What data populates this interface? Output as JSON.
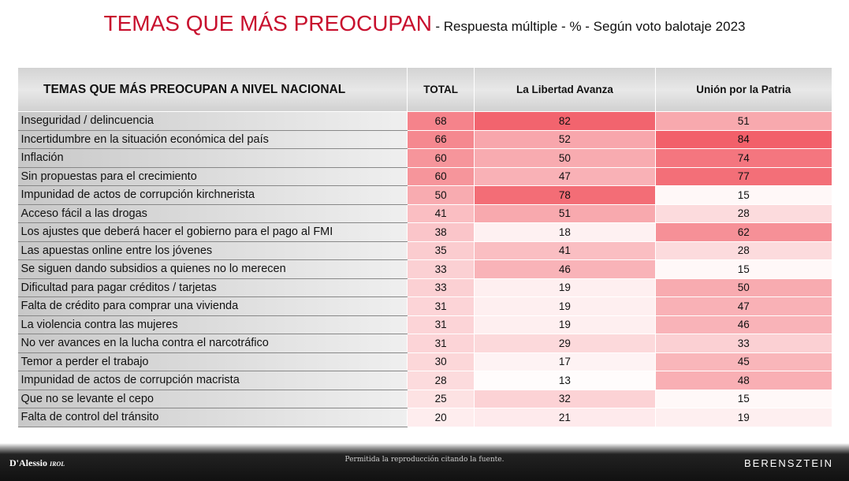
{
  "header": {
    "title": "TEMAS QUE MÁS PREOCUPAN",
    "subtitle": "- Respuesta múltiple - % - Según voto balotaje 2023"
  },
  "table": {
    "columns": [
      "TEMAS QUE MÁS PREOCUPAN A NIVEL NACIONAL",
      "TOTAL",
      "La Libertad Avanza",
      "Unión por la Patria"
    ],
    "rows": [
      [
        "Inseguridad / delincuencia",
        68,
        82,
        51
      ],
      [
        "Incertidumbre en la situación económica del país",
        66,
        52,
        84
      ],
      [
        "Inflación",
        60,
        50,
        74
      ],
      [
        "Sin propuestas para el crecimiento",
        60,
        47,
        77
      ],
      [
        "Impunidad de actos de corrupción kirchnerista",
        50,
        78,
        15
      ],
      [
        "Acceso fácil a las drogas",
        41,
        51,
        28
      ],
      [
        "Los ajustes que deberá hacer el gobierno para el pago al FMI",
        38,
        18,
        62
      ],
      [
        "Las apuestas online entre los jóvenes",
        35,
        41,
        28
      ],
      [
        "Se siguen dando subsidios a quienes no lo merecen",
        33,
        46,
        15
      ],
      [
        "Dificultad para pagar créditos / tarjetas",
        33,
        19,
        50
      ],
      [
        "Falta de crédito para comprar una vivienda",
        31,
        19,
        47
      ],
      [
        "La violencia contra las mujeres",
        31,
        19,
        46
      ],
      [
        "No ver avances en la lucha contra el narcotráfico",
        31,
        29,
        33
      ],
      [
        "Temor a perder el trabajo",
        30,
        17,
        45
      ],
      [
        "Impunidad de actos de corrupción macrista",
        28,
        13,
        48
      ],
      [
        "Que no se levante el cepo",
        25,
        32,
        15
      ],
      [
        "Falta de control del tránsito",
        20,
        21,
        19
      ]
    ]
  },
  "footer": {
    "left_logo": "D'Alessio",
    "left_logo_suffix": "IROL",
    "note": "Permitida la reproducción citando la fuente.",
    "right_logo": "BERENSZTEIN"
  }
}
